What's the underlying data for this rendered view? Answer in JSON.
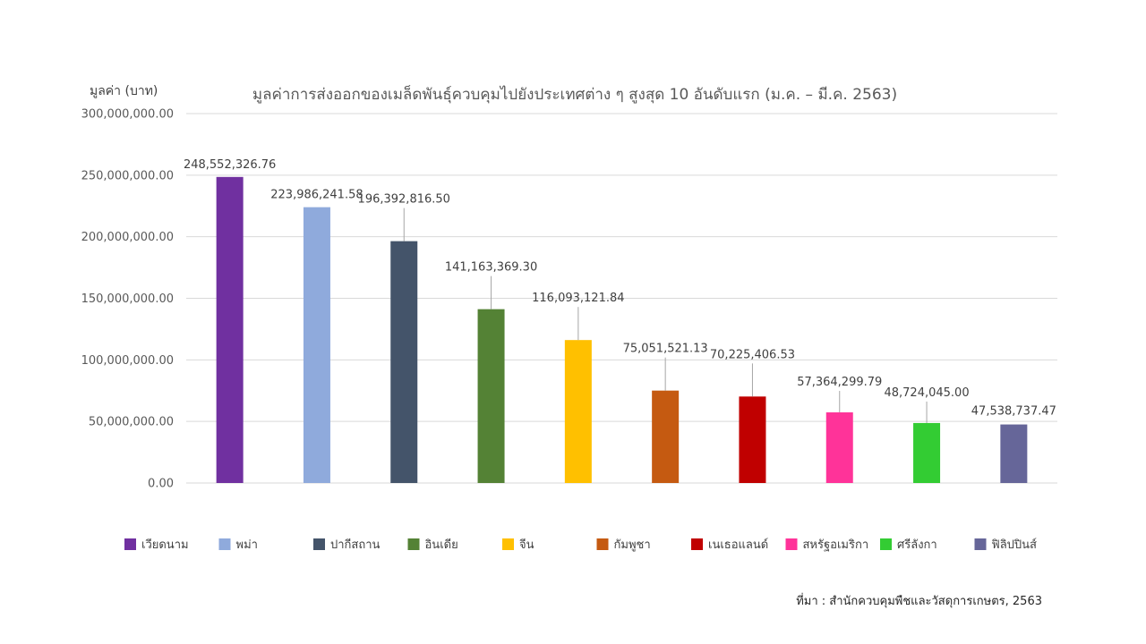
{
  "chart_data": {
    "type": "bar",
    "title": "มูลค่าการส่งออกของเมล็ดพันธุ์ควบคุมไปยังประเทศต่าง ๆ สูงสุด 10 อันดับแรก (ม.ค. – มี.ค. 2563)",
    "ylabel": "มูลค่า (บาท)",
    "xlabel": "",
    "ylim": [
      0,
      300000000
    ],
    "yticks": [
      {
        "value": 0,
        "label": "0.00"
      },
      {
        "value": 50000000,
        "label": "50,000,000.00"
      },
      {
        "value": 100000000,
        "label": "100,000,000.00"
      },
      {
        "value": 150000000,
        "label": "150,000,000.00"
      },
      {
        "value": 200000000,
        "label": "200,000,000.00"
      },
      {
        "value": 250000000,
        "label": "250,000,000.00"
      },
      {
        "value": 300000000,
        "label": "300,000,000.00"
      }
    ],
    "grid": true,
    "legend_position": "bottom",
    "categories": [
      "เวียดนาม",
      "พม่า",
      "ปากีสถาน",
      "อินเดีย",
      "จีน",
      "กัมพูชา",
      "เนเธอแลนด์",
      "สหรัฐอเมริกา",
      "ศรีลังกา",
      "ฟิลิปปินส์"
    ],
    "values": [
      248552326.76,
      223986241.58,
      196392816.5,
      141163369.3,
      116093121.84,
      75051521.13,
      70225406.53,
      57364299.79,
      48724045.0,
      47538737.47
    ],
    "value_labels": [
      "248,552,326.76",
      "223,986,241.58",
      "196,392,816.50",
      "141,163,369.30",
      "116,093,121.84",
      "75,051,521.13",
      "70,225,406.53",
      "57,364,299.79",
      "48,724,045.00",
      "47,538,737.47"
    ],
    "colors": [
      "#7030a0",
      "#8faadc",
      "#44546a",
      "#548235",
      "#ffc000",
      "#c55a11",
      "#c00000",
      "#ff3399",
      "#33cc33",
      "#666699"
    ]
  },
  "source": "ที่มา : สำนักควบคุมพืชและวัสดุการเกษตร, 2563"
}
